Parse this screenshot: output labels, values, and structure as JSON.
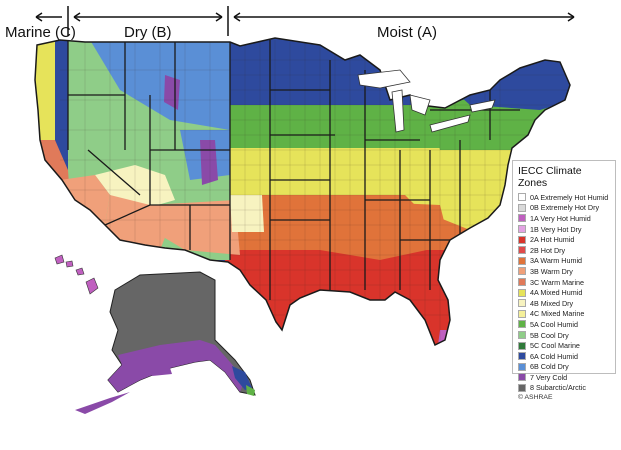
{
  "regions": {
    "marine": "Marine (C)",
    "dry": "Dry (B)",
    "moist": "Moist (A)"
  },
  "legend": {
    "title": "IECC Climate Zones",
    "credit": "© ASHRAE",
    "items": [
      {
        "label": "0A Extremely Hot Humid",
        "color": "#ffffff"
      },
      {
        "label": "0B Extremely Hot Dry",
        "color": "#d9d9d9"
      },
      {
        "label": "1A Very Hot Humid",
        "color": "#c060c0"
      },
      {
        "label": "1B Very Hot Dry",
        "color": "#e3a3e3"
      },
      {
        "label": "2A Hot Humid",
        "color": "#d9342b"
      },
      {
        "label": "2B Hot Dry",
        "color": "#e04a4a"
      },
      {
        "label": "3A Warm Humid",
        "color": "#e0733a"
      },
      {
        "label": "3B Warm Dry",
        "color": "#f0a07a"
      },
      {
        "label": "3C Warm Marine",
        "color": "#e07a5a"
      },
      {
        "label": "4A Mixed Humid",
        "color": "#e6e35a"
      },
      {
        "label": "4B Mixed Dry",
        "color": "#f7f3c0"
      },
      {
        "label": "4C Mixed Marine",
        "color": "#f5f09a"
      },
      {
        "label": "5A Cool Humid",
        "color": "#5fb246"
      },
      {
        "label": "5B Cool Dry",
        "color": "#8fcd88"
      },
      {
        "label": "5C Cool Marine",
        "color": "#2f7a3a"
      },
      {
        "label": "6A Cold Humid",
        "color": "#2e4a9e"
      },
      {
        "label": "6B Cold Dry",
        "color": "#5a8fd6"
      },
      {
        "label": "7 Very Cold",
        "color": "#8a4aa8"
      },
      {
        "label": "8 Subarctic/Arctic",
        "color": "#666666"
      }
    ]
  }
}
